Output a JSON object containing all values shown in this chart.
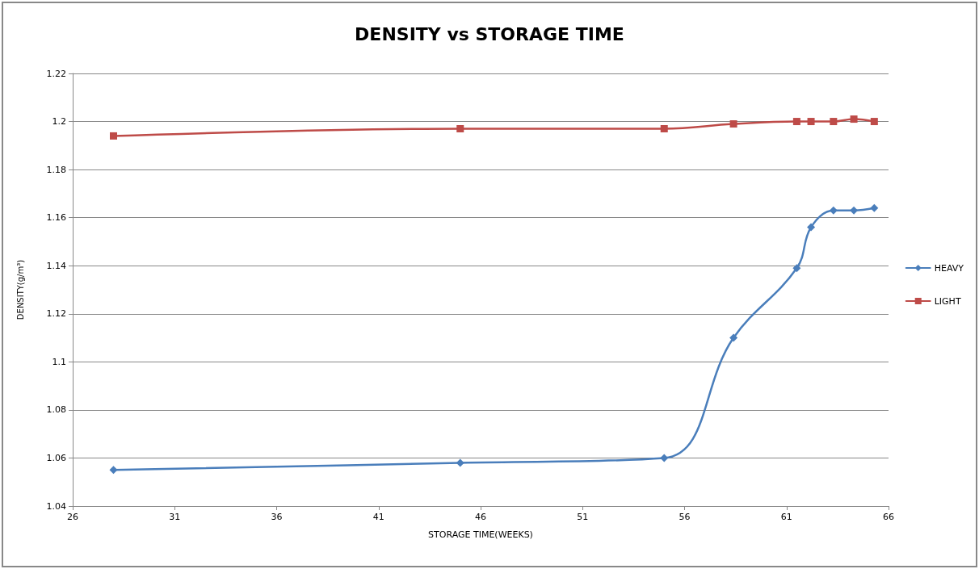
{
  "chart_data": {
    "type": "line",
    "title": "DENSITY vs STORAGE TIME",
    "xlabel": "STORAGE TIME(WEEKS)",
    "ylabel": "DENSITY(g/m³)",
    "x": [
      28,
      45,
      55,
      58.4,
      61.5,
      62.2,
      63.3,
      64.3,
      65.3
    ],
    "series": [
      {
        "name": "HEAVY",
        "color": "#4a7ebb",
        "marker": "diamond",
        "values": [
          1.055,
          1.058,
          1.06,
          1.11,
          1.139,
          1.156,
          1.163,
          1.163,
          1.164
        ]
      },
      {
        "name": "LIGHT",
        "color": "#be4b48",
        "marker": "square",
        "values": [
          1.194,
          1.197,
          1.197,
          1.199,
          1.2,
          1.2,
          1.2,
          1.201,
          1.2
        ]
      }
    ],
    "xlim": [
      26,
      66
    ],
    "xticks": [
      26,
      31,
      36,
      41,
      46,
      51,
      56,
      61,
      66
    ],
    "ylim": [
      1.04,
      1.22
    ],
    "yticks": [
      1.04,
      1.06,
      1.08,
      1.1,
      1.12,
      1.14,
      1.16,
      1.18,
      1.2,
      1.22
    ],
    "grid": "y",
    "legend": "right",
    "line_style": "solid"
  }
}
